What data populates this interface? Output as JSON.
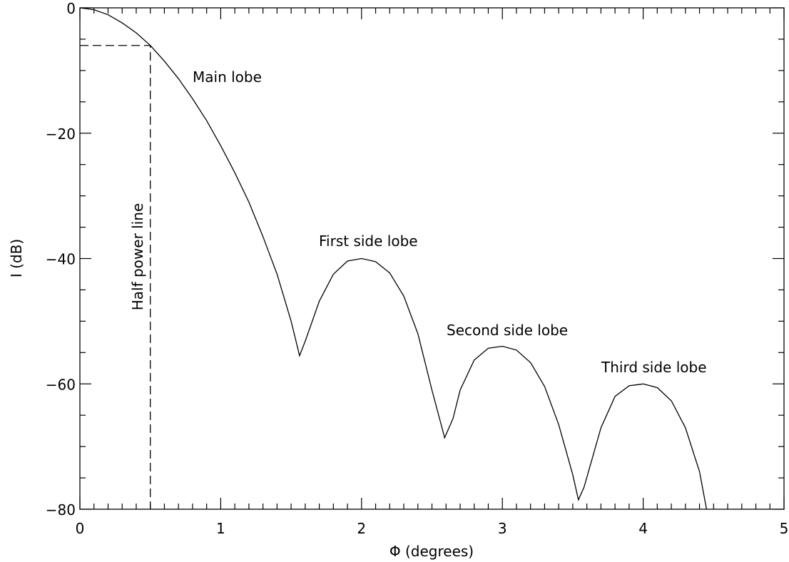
{
  "chart_data": {
    "type": "line",
    "title": "",
    "xlabel": "Φ (degrees)",
    "ylabel": "I (dB)",
    "xlim": [
      0,
      5
    ],
    "ylim": [
      -80,
      0
    ],
    "x_ticks": [
      0,
      1,
      2,
      3,
      4,
      5
    ],
    "x_tick_labels": [
      "0",
      "1",
      "2",
      "3",
      "4",
      "5"
    ],
    "y_ticks": [
      0,
      -20,
      -40,
      -60,
      -80
    ],
    "y_tick_labels": [
      "0",
      "−20",
      "−40",
      "−60",
      "−80"
    ],
    "grid": false,
    "legend": "none",
    "series": [
      {
        "x": [
          0,
          0.1,
          0.2,
          0.3,
          0.4,
          0.5,
          0.6,
          0.7,
          0.8,
          0.9,
          1.0,
          1.1,
          1.2,
          1.3,
          1.4,
          1.5,
          1.56,
          1.6,
          1.7,
          1.8,
          1.9,
          2.0,
          2.1,
          2.2,
          2.3,
          2.4,
          2.5,
          2.59,
          2.65,
          2.7,
          2.8,
          2.9,
          3.0,
          3.1,
          3.2,
          3.3,
          3.4,
          3.5,
          3.54,
          3.58,
          3.7,
          3.8,
          3.9,
          4.0,
          4.1,
          4.2,
          4.3,
          4.4,
          4.45
        ],
        "y": [
          0,
          -0.3,
          -1.1,
          -2.4,
          -4,
          -6,
          -8.5,
          -11.3,
          -14.5,
          -18,
          -22,
          -26.3,
          -31,
          -36.5,
          -42.5,
          -50,
          -55.5,
          -53.2,
          -46.8,
          -42.5,
          -40.4,
          -40,
          -40.5,
          -42.3,
          -46,
          -52,
          -61,
          -68.6,
          -65.5,
          -61,
          -56.2,
          -54.3,
          -54,
          -54.6,
          -56.6,
          -60.4,
          -66.5,
          -74.5,
          -78.5,
          -76.5,
          -67,
          -62,
          -60.3,
          -60,
          -60.6,
          -62.7,
          -67,
          -74,
          -80
        ]
      }
    ],
    "annotations": {
      "main_lobe": "Main lobe",
      "first_side_lobe": "First side lobe",
      "second_side_lobe": "Second side lobe",
      "third_side_lobe": "Third side lobe",
      "half_power_line": "Half power line"
    },
    "half_power": {
      "x": 0.5,
      "y": -6
    }
  }
}
